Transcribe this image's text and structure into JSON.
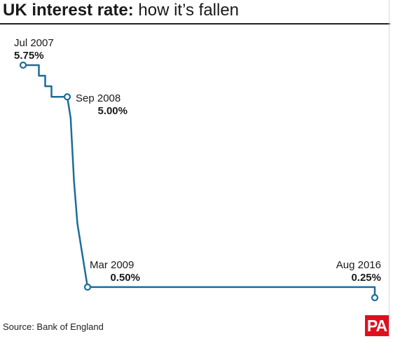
{
  "title": {
    "bold": "UK interest rate:",
    "light": " how it’s fallen"
  },
  "source": "Source: Bank of England",
  "logo": "PA",
  "colors": {
    "line": "#1d6c9b",
    "logo": "#e10f1e"
  },
  "chart_data": {
    "type": "line",
    "title": "UK interest rate: how it’s fallen",
    "xlabel": "",
    "ylabel": "",
    "grid": false,
    "ylim": [
      0,
      6
    ],
    "series": [
      {
        "points": [
          {
            "x": "2007-07",
            "y": 5.75
          },
          {
            "x": "2007-12",
            "y": 5.5
          },
          {
            "x": "2008-02",
            "y": 5.25
          },
          {
            "x": "2008-04",
            "y": 5.0
          },
          {
            "x": "2008-09",
            "y": 5.0
          },
          {
            "x": "2008-10",
            "y": 4.5
          },
          {
            "x": "2008-11",
            "y": 3.0
          },
          {
            "x": "2008-12",
            "y": 2.0
          },
          {
            "x": "2009-01",
            "y": 1.5
          },
          {
            "x": "2009-02",
            "y": 1.0
          },
          {
            "x": "2009-03",
            "y": 0.5
          },
          {
            "x": "2016-07",
            "y": 0.5
          },
          {
            "x": "2016-08",
            "y": 0.25
          }
        ]
      }
    ],
    "annotations": [
      {
        "date": "Jul 2007",
        "value": "5.75%",
        "x": "2007-07",
        "y": 5.75,
        "align": "above-left"
      },
      {
        "date": "Sep 2008",
        "value": "5.00%",
        "x": "2008-09",
        "y": 5.0,
        "align": "right"
      },
      {
        "date": "Mar 2009",
        "value": "0.50%",
        "x": "2009-03",
        "y": 0.5,
        "align": "above-right"
      },
      {
        "date": "Aug 2016",
        "value": "0.25%",
        "x": "2016-08",
        "y": 0.25,
        "align": "above-left"
      }
    ]
  }
}
